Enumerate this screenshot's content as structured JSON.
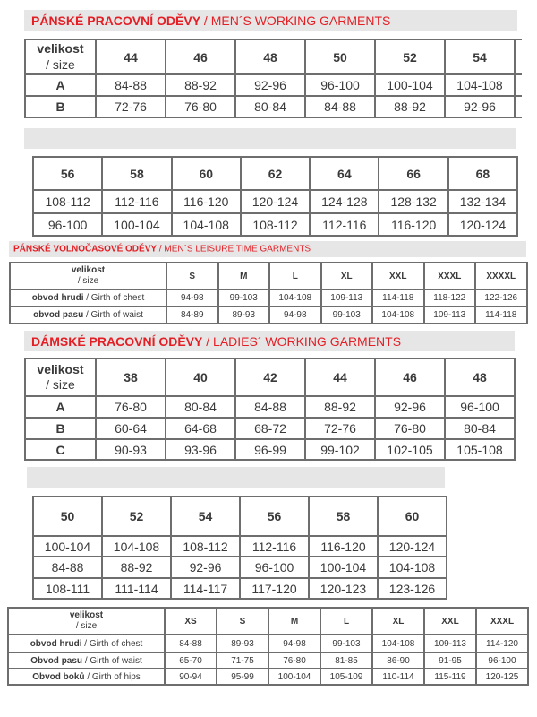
{
  "sections": {
    "mens_working": {
      "title_cz": "PÁNSKÉ PRACOVNÍ ODĚVY",
      "title_en": " / MEN´S WORKING GARMENTS"
    },
    "mens_leisure": {
      "title_cz": "PÁNSKÉ VOLNOČASOVÉ ODĚVY",
      "title_en": " / MEN´S LEISURE TIME GARMENTS"
    },
    "ladies_working": {
      "title_cz": "DÁMSKÉ PRACOVNÍ ODĚVY",
      "title_en": " / LADIES´ WORKING GARMENTS"
    }
  },
  "tables": {
    "t1": {
      "corner": [
        "velikost",
        "/ size"
      ],
      "headers": [
        "44",
        "46",
        "48",
        "50",
        "52",
        "54"
      ],
      "rows": [
        {
          "label": "A",
          "values": [
            "84-88",
            "88-92",
            "92-96",
            "96-100",
            "100-104",
            "104-108"
          ]
        },
        {
          "label": "B",
          "values": [
            "72-76",
            "76-80",
            "80-84",
            "84-88",
            "88-92",
            "92-96"
          ]
        }
      ]
    },
    "t2": {
      "headers": [
        "56",
        "58",
        "60",
        "62",
        "64",
        "66",
        "68"
      ],
      "rows": [
        {
          "values": [
            "108-112",
            "112-116",
            "116-120",
            "120-124",
            "124-128",
            "128-132",
            "132-134"
          ]
        },
        {
          "values": [
            "96-100",
            "100-104",
            "104-108",
            "108-112",
            "112-116",
            "116-120",
            "120-124"
          ]
        }
      ]
    },
    "t3": {
      "corner": [
        "velikost",
        "/ size"
      ],
      "headers": [
        "S",
        "M",
        "L",
        "XL",
        "XXL",
        "XXXL",
        "XXXXL"
      ],
      "rows": [
        {
          "label_bold": "obvod hrudi ",
          "label_rest": " / Girth of chest",
          "values": [
            "94-98",
            "99-103",
            "104-108",
            "109-113",
            "114-118",
            "118-122",
            "122-126"
          ]
        },
        {
          "label_bold": "obvod pasu",
          "label_rest": " / Girth of waist",
          "values": [
            "84-89",
            "89-93",
            "94-98",
            "99-103",
            "104-108",
            "109-113",
            "114-118"
          ]
        }
      ]
    },
    "t4": {
      "corner": [
        "velikost",
        "/ size"
      ],
      "headers": [
        "38",
        "40",
        "42",
        "44",
        "46",
        "48"
      ],
      "rows": [
        {
          "label": "A",
          "values": [
            "76-80",
            "80-84",
            "84-88",
            "88-92",
            "92-96",
            "96-100"
          ]
        },
        {
          "label": "B",
          "values": [
            "60-64",
            "64-68",
            "68-72",
            "72-76",
            "76-80",
            "80-84"
          ]
        },
        {
          "label": "C",
          "values": [
            "90-93",
            "93-96",
            "96-99",
            "99-102",
            "102-105",
            "105-108"
          ]
        }
      ]
    },
    "t5": {
      "headers": [
        "50",
        "52",
        "54",
        "56",
        "58",
        "60"
      ],
      "rows": [
        {
          "values": [
            "100-104",
            "104-108",
            "108-112",
            "112-116",
            "116-120",
            "120-124"
          ]
        },
        {
          "values": [
            "84-88",
            "88-92",
            "92-96",
            "96-100",
            "100-104",
            "104-108"
          ]
        },
        {
          "values": [
            "108-111",
            "111-114",
            "114-117",
            "117-120",
            "120-123",
            "123-126"
          ]
        }
      ]
    },
    "t6": {
      "corner": [
        "velikost",
        "/ size"
      ],
      "headers": [
        "XS",
        "S",
        "M",
        "L",
        "XL",
        "XXL",
        "XXXL"
      ],
      "rows": [
        {
          "label_bold": "obvod hrudi",
          "label_rest": " / Girth of chest",
          "values": [
            "84-88",
            "89-93",
            "94-98",
            "99-103",
            "104-108",
            "109-113",
            "114-120"
          ]
        },
        {
          "label_bold": "Obvod pasu",
          "label_rest": " / Girth of waist",
          "values": [
            "65-70",
            "71-75",
            "76-80",
            "81-85",
            "86-90",
            "91-95",
            "96-100"
          ]
        },
        {
          "label_bold": "Obvod boků",
          "label_rest": " / Girth of hips",
          "values": [
            "90-94",
            "95-99",
            "100-104",
            "105-109",
            "110-114",
            "115-119",
            "120-125"
          ]
        }
      ]
    }
  }
}
